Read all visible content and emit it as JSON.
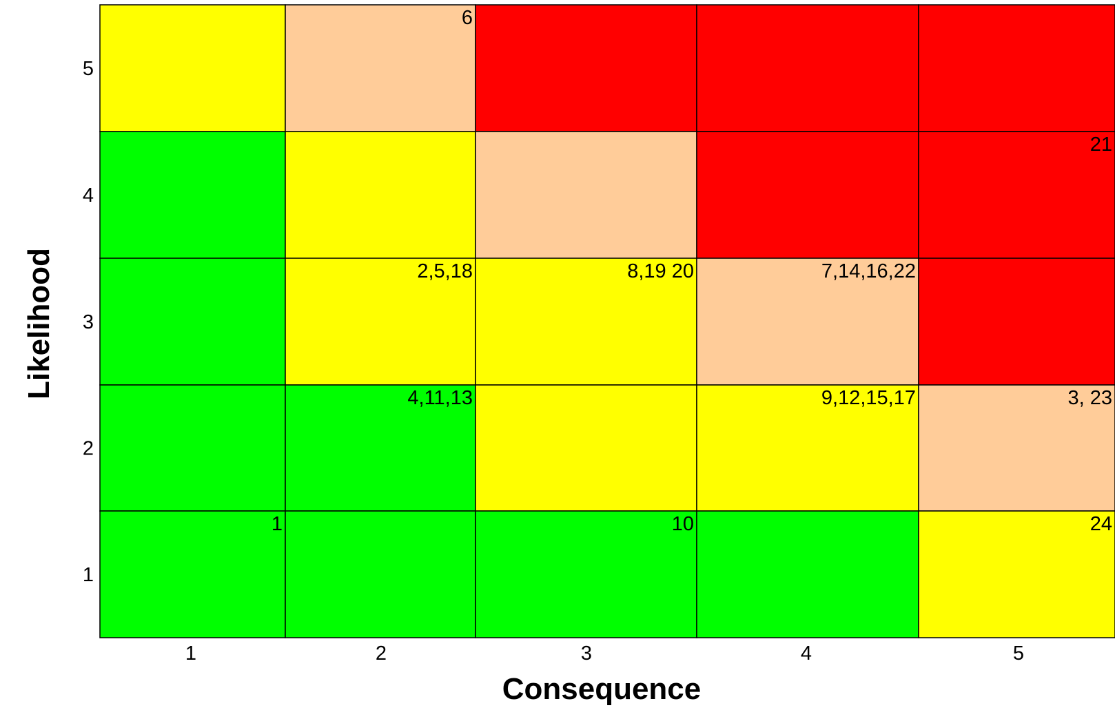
{
  "chart_data": {
    "type": "heatmap",
    "title": "",
    "xlabel": "Consequence",
    "ylabel": "Likelihood",
    "x_ticks": [
      "1",
      "2",
      "3",
      "4",
      "5"
    ],
    "y_ticks": [
      "1",
      "2",
      "3",
      "4",
      "5"
    ],
    "grid": true,
    "colors": {
      "green": "#00ff00",
      "yellow": "#ffff00",
      "peach": "#ffcc99",
      "red": "#ff0000"
    },
    "cells": [
      {
        "consequence": 1,
        "likelihood": 5,
        "color": "yellow",
        "label": ""
      },
      {
        "consequence": 2,
        "likelihood": 5,
        "color": "peach",
        "label": "6"
      },
      {
        "consequence": 3,
        "likelihood": 5,
        "color": "red",
        "label": ""
      },
      {
        "consequence": 4,
        "likelihood": 5,
        "color": "red",
        "label": ""
      },
      {
        "consequence": 5,
        "likelihood": 5,
        "color": "red",
        "label": ""
      },
      {
        "consequence": 1,
        "likelihood": 4,
        "color": "green",
        "label": ""
      },
      {
        "consequence": 2,
        "likelihood": 4,
        "color": "yellow",
        "label": ""
      },
      {
        "consequence": 3,
        "likelihood": 4,
        "color": "peach",
        "label": ""
      },
      {
        "consequence": 4,
        "likelihood": 4,
        "color": "red",
        "label": ""
      },
      {
        "consequence": 5,
        "likelihood": 4,
        "color": "red",
        "label": "21"
      },
      {
        "consequence": 1,
        "likelihood": 3,
        "color": "green",
        "label": ""
      },
      {
        "consequence": 2,
        "likelihood": 3,
        "color": "yellow",
        "label": "2,5,18"
      },
      {
        "consequence": 3,
        "likelihood": 3,
        "color": "yellow",
        "label": "8,19 20"
      },
      {
        "consequence": 4,
        "likelihood": 3,
        "color": "peach",
        "label": "7,14,16,22"
      },
      {
        "consequence": 5,
        "likelihood": 3,
        "color": "red",
        "label": ""
      },
      {
        "consequence": 1,
        "likelihood": 2,
        "color": "green",
        "label": ""
      },
      {
        "consequence": 2,
        "likelihood": 2,
        "color": "green",
        "label": "4,11,13"
      },
      {
        "consequence": 3,
        "likelihood": 2,
        "color": "yellow",
        "label": ""
      },
      {
        "consequence": 4,
        "likelihood": 2,
        "color": "yellow",
        "label": "9,12,15,17"
      },
      {
        "consequence": 5,
        "likelihood": 2,
        "color": "peach",
        "label": "3, 23"
      },
      {
        "consequence": 1,
        "likelihood": 1,
        "color": "green",
        "label": "1"
      },
      {
        "consequence": 2,
        "likelihood": 1,
        "color": "green",
        "label": ""
      },
      {
        "consequence": 3,
        "likelihood": 1,
        "color": "green",
        "label": "10"
      },
      {
        "consequence": 4,
        "likelihood": 1,
        "color": "green",
        "label": ""
      },
      {
        "consequence": 5,
        "likelihood": 1,
        "color": "yellow",
        "label": "24"
      }
    ]
  }
}
